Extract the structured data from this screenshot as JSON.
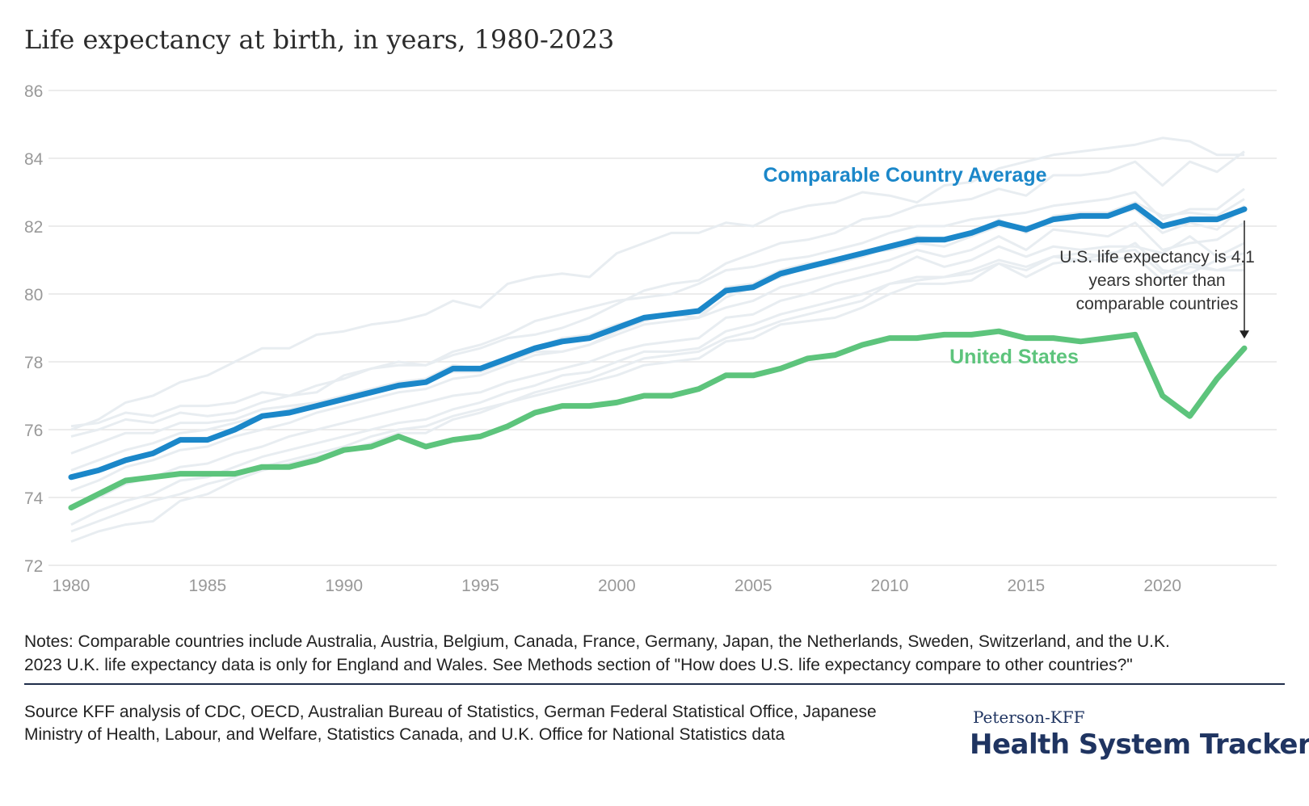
{
  "title": "Life expectancy at birth, in years, 1980-2023",
  "notes": {
    "line1": "Notes: Comparable countries include Australia, Austria, Belgium, Canada, France, Germany, Japan, the Netherlands, Sweden, Switzerland, and the U.K.",
    "line2": "2023 U.K. life expectancy data is only for England and Wales. See Methods section of \"How does U.S. life expectancy compare to other countries?\""
  },
  "source": "Source KFF analysis of CDC, OECD, Australian Bureau of Statistics, German Federal Statistical Office, Japanese Ministry of Health, Labour, and Welfare, Statistics Canada, and U.K. Office for National Statistics data",
  "logo": {
    "top": "Peterson-KFF",
    "main": "Health System Tracker"
  },
  "colors": {
    "comparable": "#1b87c9",
    "us": "#5dc47c",
    "background_lines": "#e8edf1",
    "grid": "#e6e6e6",
    "axis_text": "#999999",
    "logo": "#1f3461"
  },
  "chart_data": {
    "type": "line",
    "title": "Life expectancy at birth, in years, 1980-2023",
    "xlim": [
      1980,
      2023
    ],
    "ylim": [
      72,
      86
    ],
    "xticks": [
      1980,
      1985,
      1990,
      1995,
      2000,
      2005,
      2010,
      2015,
      2020
    ],
    "yticks": [
      72,
      74,
      76,
      78,
      80,
      82,
      84,
      86
    ],
    "grid": true,
    "x": [
      1980,
      1981,
      1982,
      1983,
      1984,
      1985,
      1986,
      1987,
      1988,
      1989,
      1990,
      1991,
      1992,
      1993,
      1994,
      1995,
      1996,
      1997,
      1998,
      1999,
      2000,
      2001,
      2002,
      2003,
      2004,
      2005,
      2006,
      2007,
      2008,
      2009,
      2010,
      2011,
      2012,
      2013,
      2014,
      2015,
      2016,
      2017,
      2018,
      2019,
      2020,
      2021,
      2022,
      2023
    ],
    "series": [
      {
        "name": "Comparable Country Average",
        "color": "#1b87c9",
        "values": [
          74.6,
          74.8,
          75.1,
          75.3,
          75.7,
          75.7,
          76.0,
          76.4,
          76.5,
          76.7,
          76.9,
          77.1,
          77.3,
          77.4,
          77.8,
          77.8,
          78.1,
          78.4,
          78.6,
          78.7,
          79.0,
          79.3,
          79.4,
          79.5,
          80.1,
          80.2,
          80.6,
          80.8,
          81.0,
          81.2,
          81.4,
          81.6,
          81.6,
          81.8,
          82.1,
          81.9,
          82.2,
          82.3,
          82.3,
          82.6,
          82.0,
          82.2,
          82.2,
          82.5
        ]
      },
      {
        "name": "United States",
        "color": "#5dc47c",
        "values": [
          73.7,
          74.1,
          74.5,
          74.6,
          74.7,
          74.7,
          74.7,
          74.9,
          74.9,
          75.1,
          75.4,
          75.5,
          75.8,
          75.5,
          75.7,
          75.8,
          76.1,
          76.5,
          76.7,
          76.7,
          76.8,
          77.0,
          77.0,
          77.2,
          77.6,
          77.6,
          77.8,
          78.1,
          78.2,
          78.5,
          78.7,
          78.7,
          78.8,
          78.8,
          78.9,
          78.7,
          78.7,
          78.6,
          78.7,
          78.8,
          77.0,
          76.4,
          77.5,
          78.4
        ]
      }
    ],
    "background_series": [
      [
        76.0,
        76.3,
        76.8,
        77.0,
        77.4,
        77.6,
        78.0,
        78.4,
        78.4,
        78.8,
        78.9,
        79.1,
        79.2,
        79.4,
        79.8,
        79.6,
        80.3,
        80.5,
        80.6,
        80.5,
        81.2,
        81.5,
        81.8,
        81.8,
        82.1,
        82.0,
        82.4,
        82.6,
        82.7,
        83.0,
        82.9,
        82.7,
        83.2,
        83.3,
        83.7,
        83.9,
        84.1,
        84.2,
        84.3,
        84.4,
        84.6,
        84.5,
        84.1,
        84.1
      ],
      [
        76.1,
        76.2,
        76.5,
        76.4,
        76.7,
        76.7,
        76.8,
        77.1,
        77.0,
        77.1,
        77.6,
        77.8,
        78.0,
        77.9,
        78.2,
        78.4,
        78.7,
        78.8,
        79.0,
        79.3,
        79.7,
        80.1,
        80.3,
        80.4,
        80.9,
        81.2,
        81.5,
        81.6,
        81.8,
        82.2,
        82.3,
        82.6,
        82.7,
        82.8,
        83.1,
        82.9,
        83.5,
        83.5,
        83.6,
        83.9,
        83.2,
        83.9,
        83.6,
        84.2
      ],
      [
        75.8,
        76.0,
        76.3,
        76.2,
        76.5,
        76.4,
        76.5,
        76.8,
        77.0,
        77.3,
        77.5,
        77.8,
        77.9,
        77.9,
        78.3,
        78.5,
        78.8,
        79.2,
        79.4,
        79.6,
        79.8,
        79.9,
        80.0,
        80.3,
        80.7,
        80.8,
        81.0,
        81.1,
        81.3,
        81.5,
        81.8,
        82.0,
        82.0,
        82.2,
        82.3,
        82.4,
        82.6,
        82.7,
        82.8,
        83.0,
        82.2,
        82.5,
        82.5,
        83.1
      ],
      [
        75.3,
        75.6,
        75.9,
        75.9,
        76.2,
        76.2,
        76.3,
        76.6,
        76.7,
        76.8,
        77.0,
        77.1,
        77.3,
        77.5,
        77.7,
        77.7,
        78.0,
        78.3,
        78.3,
        78.5,
        78.9,
        79.2,
        79.4,
        79.3,
        79.9,
        80.2,
        80.5,
        80.8,
        80.9,
        81.1,
        81.4,
        81.7,
        81.6,
        81.7,
        82.0,
        81.9,
        82.2,
        82.3,
        82.3,
        82.5,
        81.8,
        82.1,
        81.9,
        82.6
      ],
      [
        74.8,
        75.1,
        75.4,
        75.6,
        75.9,
        76.0,
        76.2,
        76.4,
        76.6,
        76.8,
        77.0,
        77.2,
        77.4,
        77.5,
        77.9,
        77.8,
        78.1,
        78.4,
        78.7,
        78.8,
        79.1,
        79.3,
        79.4,
        79.3,
        80.2,
        80.3,
        80.7,
        80.9,
        81.0,
        81.2,
        81.3,
        81.5,
        81.4,
        81.7,
        82.2,
        81.8,
        82.3,
        82.4,
        82.4,
        82.7,
        82.3,
        82.4,
        82.3,
        82.8
      ],
      [
        74.2,
        74.5,
        74.9,
        75.1,
        75.4,
        75.5,
        75.8,
        76.0,
        76.2,
        76.5,
        76.7,
        76.9,
        77.1,
        77.2,
        77.5,
        77.6,
        77.9,
        78.2,
        78.3,
        78.5,
        78.8,
        79.1,
        79.2,
        79.3,
        79.6,
        79.8,
        80.2,
        80.4,
        80.6,
        80.8,
        81.0,
        81.3,
        81.1,
        81.3,
        81.7,
        81.3,
        81.9,
        81.8,
        81.7,
        82.1,
        81.3,
        81.5,
        81.6,
        82.1
      ],
      [
        73.7,
        74.0,
        74.4,
        74.6,
        74.9,
        75.0,
        75.3,
        75.5,
        75.8,
        76.0,
        76.2,
        76.4,
        76.6,
        76.8,
        77.0,
        77.1,
        77.4,
        77.6,
        77.8,
        78.0,
        78.3,
        78.5,
        78.6,
        78.7,
        79.3,
        79.4,
        79.8,
        80.0,
        80.3,
        80.5,
        80.7,
        81.1,
        80.8,
        81.0,
        81.4,
        81.1,
        81.4,
        81.3,
        81.4,
        81.4,
        81.2,
        81.7,
        81.1,
        81.5
      ],
      [
        73.2,
        73.6,
        73.9,
        74.1,
        74.5,
        74.6,
        74.9,
        75.2,
        75.4,
        75.6,
        75.8,
        76.0,
        76.2,
        76.3,
        76.6,
        76.8,
        77.1,
        77.3,
        77.6,
        77.7,
        78.0,
        78.3,
        78.3,
        78.4,
        78.9,
        79.1,
        79.4,
        79.6,
        79.8,
        80.0,
        80.3,
        80.5,
        80.5,
        80.7,
        81.0,
        80.8,
        81.1,
        81.2,
        81.1,
        81.5,
        80.7,
        80.6,
        81.0,
        81.2
      ],
      [
        73.0,
        73.3,
        73.6,
        73.9,
        74.1,
        74.4,
        74.6,
        74.9,
        75.1,
        75.3,
        75.5,
        75.8,
        76.0,
        76.1,
        76.4,
        76.6,
        76.8,
        77.1,
        77.3,
        77.5,
        77.8,
        78.1,
        78.2,
        78.3,
        78.7,
        78.9,
        79.2,
        79.4,
        79.6,
        79.8,
        80.3,
        80.4,
        80.5,
        80.6,
        80.9,
        80.7,
        81.1,
        81.0,
        81.2,
        81.3,
        80.6,
        80.9,
        80.7,
        80.9
      ],
      [
        72.7,
        73.0,
        73.2,
        73.3,
        73.9,
        74.1,
        74.5,
        74.8,
        75.0,
        75.2,
        75.4,
        75.6,
        75.9,
        75.9,
        76.3,
        76.5,
        76.8,
        77.0,
        77.2,
        77.4,
        77.6,
        77.9,
        78.0,
        78.1,
        78.6,
        78.7,
        79.1,
        79.2,
        79.3,
        79.6,
        80.0,
        80.3,
        80.3,
        80.4,
        80.9,
        80.5,
        80.9,
        81.0,
        81.0,
        81.1,
        80.4,
        80.8,
        80.7,
        80.7
      ]
    ],
    "annotations": [
      {
        "text": "Comparable Country Average",
        "color": "#1b87c9"
      },
      {
        "text": "United States",
        "color": "#5dc47c"
      },
      {
        "lines": [
          "U.S. life expectancy is 4.1",
          "years shorter than",
          "comparable countries"
        ]
      }
    ]
  }
}
